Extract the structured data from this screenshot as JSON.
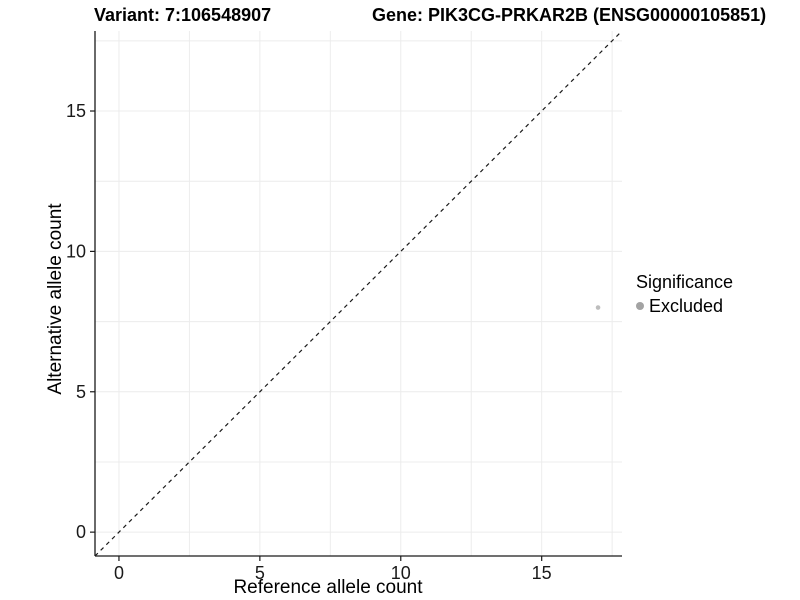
{
  "titles": {
    "variant": "Variant: 7:106548907",
    "gene": "Gene: PIK3CG-PRKAR2B (ENSG00000105851)"
  },
  "chart_data": {
    "type": "scatter",
    "title": "Variant: 7:106548907 / Gene: PIK3CG-PRKAR2B (ENSG00000105851)",
    "xlabel": "Reference allele count",
    "ylabel": "Alternative allele count",
    "xlim": [
      -0.85,
      17.85
    ],
    "ylim": [
      -0.85,
      17.85
    ],
    "xticks": [
      0,
      5,
      10,
      15
    ],
    "yticks": [
      0,
      5,
      10,
      15
    ],
    "grid": true,
    "gridline_step": 2.5,
    "reference_line": {
      "type": "identity-diagonal",
      "style": "dashed",
      "color": "#1a1a1a"
    },
    "series": [
      {
        "name": "Excluded",
        "points": [
          {
            "x": 17,
            "y": 8
          }
        ],
        "color": "#bdbdbd"
      }
    ],
    "legend": {
      "title": "Significance",
      "position": "right",
      "items": [
        {
          "label": "Excluded",
          "color": "#a3a3a3"
        }
      ]
    },
    "colors": {
      "grid": "#ececec",
      "axis": "#1a1a1a",
      "tick_text": "#1a1a1a",
      "point": "#bdbdbd"
    }
  }
}
